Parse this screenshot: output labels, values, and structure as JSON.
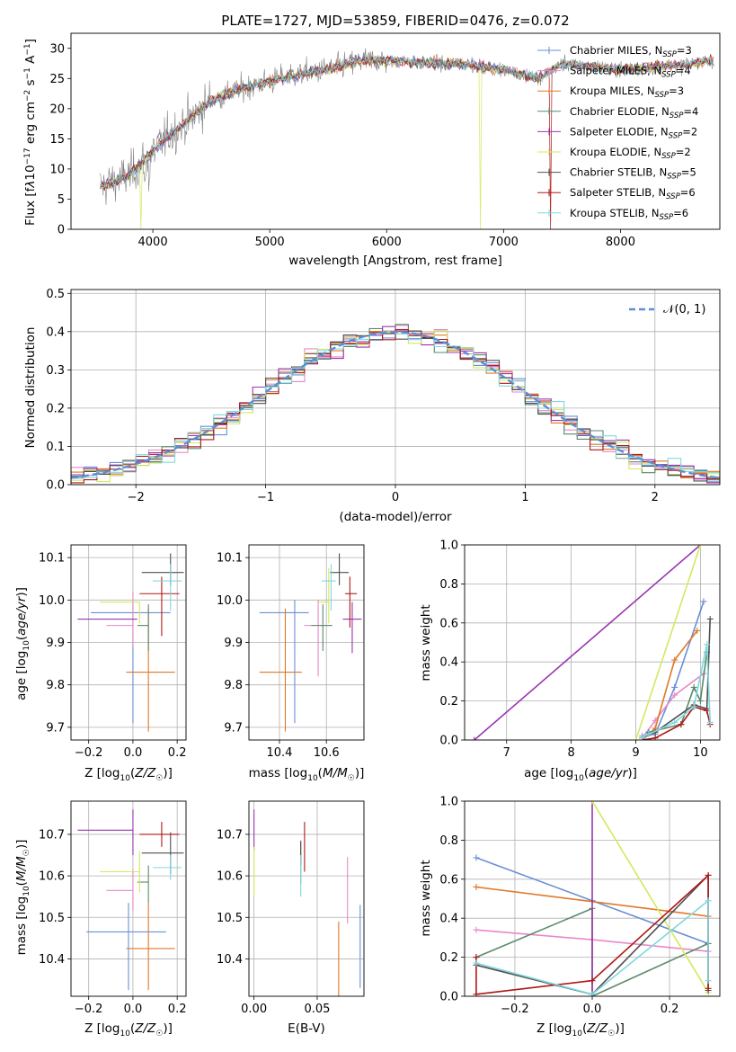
{
  "colors": [
    "#6a8fd6",
    "#e888c8",
    "#e07828",
    "#5a8a6a",
    "#9a36b0",
    "#d4e860",
    "#505050",
    "#b01818",
    "#80d8e0"
  ],
  "ssp_labels": [
    "Chabrier MILES, N",
    "Salpeter MILES, N",
    "Kroupa MILES, N",
    "Chabrier ELODIE, N",
    "Salpeter ELODIE, N",
    "Kroupa ELODIE, N",
    "Chabrier STELIB, N",
    "Salpeter STELIB, N",
    "Kroupa STELIB, N"
  ],
  "ssp_sub": "SSP",
  "chart_data": [
    {
      "id": "spectrum",
      "type": "line",
      "title": "PLATE=1727, MJD=53859, FIBERID=0476, z=0.072",
      "xlabel": "wavelength [Angstrom, rest frame]",
      "ylabel": "Flux [fλ10⁻¹⁷ erg cm⁻² s⁻¹ A⁻¹]",
      "xlim": [
        3300,
        8850
      ],
      "ylim": [
        0,
        32.5
      ],
      "xticks": [
        4000,
        5000,
        6000,
        7000,
        8000
      ],
      "yticks": [
        0,
        5,
        10,
        15,
        20,
        25,
        30
      ],
      "continuum_x": [
        3550,
        3800,
        3950,
        4100,
        4300,
        4500,
        4800,
        5000,
        5200,
        5500,
        5800,
        6000,
        6300,
        6600,
        7000,
        7100,
        7300,
        7500,
        8000,
        8400,
        8800
      ],
      "continuum_y": [
        7,
        9,
        12,
        15,
        18,
        21.5,
        23.5,
        24.5,
        25.5,
        26.5,
        28,
        28,
        27.5,
        27.5,
        26.5,
        26,
        25,
        27.5,
        26.5,
        27,
        28
      ],
      "legend": [
        "=3",
        "=4",
        "=3",
        "=4",
        "=2",
        "=2",
        "=5",
        "=6",
        "=6"
      ]
    },
    {
      "id": "histogram",
      "type": "bar",
      "xlabel": "(data-model)/error",
      "ylabel": "Normed distribution",
      "xlim": [
        -2.5,
        2.5
      ],
      "ylim": [
        0,
        0.51
      ],
      "xticks": [
        -2,
        -1,
        0,
        1,
        2
      ],
      "xtick_labels": [
        "−2",
        "−1",
        "0",
        "1",
        "2"
      ],
      "yticks": [
        0.0,
        0.1,
        0.2,
        0.3,
        0.4,
        0.5
      ],
      "ytick_labels": [
        "0.0",
        "0.1",
        "0.2",
        "0.3",
        "0.4",
        "0.5"
      ],
      "bin_width": 0.1,
      "gaussian_label": "𝒩(0, 1)"
    },
    {
      "id": "age_vs_Z",
      "type": "scatter",
      "xlabel": "Z [log₁₀(Z/Z☉)]",
      "ylabel": "age  [log₁₀(age/yr)]",
      "xlim": [
        -0.28,
        0.24
      ],
      "ylim": [
        9.67,
        10.13
      ],
      "xticks": [
        -0.2,
        0.0,
        0.2
      ],
      "xtick_labels": [
        "−0.2",
        "0.0",
        "0.2"
      ],
      "yticks": [
        9.7,
        9.8,
        9.9,
        10.0,
        10.1
      ],
      "ytick_labels": [
        "9.7",
        "9.8",
        "9.9",
        "10.0",
        "10.1"
      ],
      "points": [
        {
          "x": 0.0,
          "y": 9.97,
          "xerr": [
            0.19,
            0.17
          ],
          "yerr": [
            0.26,
            0.03
          ]
        },
        {
          "x": 0.0,
          "y": 9.94,
          "xerr": [
            0.12,
            0.0
          ],
          "yerr": [
            0.05,
            0.08
          ]
        },
        {
          "x": 0.07,
          "y": 9.83,
          "xerr": [
            0.1,
            0.12
          ],
          "yerr": [
            0.14,
            0.15
          ]
        },
        {
          "x": 0.07,
          "y": 9.94,
          "xerr": [
            0.05,
            0.0
          ],
          "yerr": [
            0.06,
            0.05
          ]
        },
        {
          "x": -0.02,
          "y": 9.955,
          "xerr": [
            0.23,
            0.04
          ],
          "yerr": [
            0.0,
            0.0
          ]
        },
        {
          "x": 0.03,
          "y": 9.995,
          "xerr": [
            0.18,
            0.0
          ],
          "yerr": [
            0.05,
            0.0
          ]
        },
        {
          "x": 0.17,
          "y": 10.065,
          "xerr": [
            0.13,
            0.06
          ],
          "yerr": [
            0.03,
            0.045
          ]
        },
        {
          "x": 0.13,
          "y": 10.015,
          "xerr": [
            0.1,
            0.08
          ],
          "yerr": [
            0.1,
            0.04
          ]
        },
        {
          "x": 0.17,
          "y": 10.045,
          "xerr": [
            0.08,
            0.05
          ],
          "yerr": [
            0.07,
            0.04
          ]
        }
      ]
    },
    {
      "id": "age_vs_mass",
      "type": "scatter",
      "xlabel": "mass [log₁₀(M/M☉)]",
      "xlim": [
        10.27,
        10.76
      ],
      "ylim": [
        9.67,
        10.13
      ],
      "xticks": [
        10.4,
        10.6
      ],
      "xtick_labels": [
        "10.4",
        "10.6"
      ],
      "yticks": [
        9.7,
        9.8,
        9.9,
        10.0,
        10.1
      ],
      "ytick_labels": [
        "9.7",
        "9.8",
        "9.9",
        "10.0",
        "10.1"
      ],
      "points": [
        {
          "x": 10.465,
          "y": 9.97,
          "xerr": [
            0.15,
            0.06
          ],
          "yerr": [
            0.26,
            0.03
          ]
        },
        {
          "x": 10.565,
          "y": 9.94,
          "xerr": [
            0.06,
            0.06
          ],
          "yerr": [
            0.12,
            0.06
          ]
        },
        {
          "x": 10.425,
          "y": 9.83,
          "xerr": [
            0.11,
            0.07
          ],
          "yerr": [
            0.14,
            0.15
          ]
        },
        {
          "x": 10.585,
          "y": 9.94,
          "xerr": [
            0.05,
            0.04
          ],
          "yerr": [
            0.06,
            0.05
          ]
        },
        {
          "x": 10.71,
          "y": 9.955,
          "xerr": [
            0.04,
            0.04
          ],
          "yerr": [
            0.08,
            0.04
          ]
        },
        {
          "x": 10.61,
          "y": 9.995,
          "xerr": [
            0.05,
            0.0
          ],
          "yerr": [
            0.05,
            0.08
          ]
        },
        {
          "x": 10.655,
          "y": 10.065,
          "xerr": [
            0.04,
            0.04
          ],
          "yerr": [
            0.03,
            0.045
          ]
        },
        {
          "x": 10.7,
          "y": 10.015,
          "xerr": [
            0.02,
            0.03
          ],
          "yerr": [
            0.08,
            0.04
          ]
        },
        {
          "x": 10.62,
          "y": 10.045,
          "xerr": [
            0.04,
            0.02
          ],
          "yerr": [
            0.07,
            0.04
          ]
        }
      ]
    },
    {
      "id": "weight_vs_age",
      "type": "line",
      "xlabel": "age  [log₁₀(age/yr)]",
      "ylabel": "mass weight",
      "xlim": [
        6.35,
        10.3
      ],
      "ylim": [
        0,
        1
      ],
      "xticks": [
        7,
        8,
        9,
        10
      ],
      "yticks": [
        0.0,
        0.2,
        0.4,
        0.6,
        0.8,
        1.0
      ],
      "ytick_labels": [
        "0.0",
        "0.2",
        "0.4",
        "0.6",
        "0.8",
        "1.0"
      ],
      "series": [
        {
          "x": [
            9.1,
            9.3,
            9.6,
            10.05
          ],
          "y": [
            0.02,
            0.03,
            0.27,
            0.71
          ]
        },
        {
          "x": [
            9.1,
            9.3,
            9.6,
            10.05
          ],
          "y": [
            0.01,
            0.1,
            0.23,
            0.34
          ]
        },
        {
          "x": [
            9.1,
            9.3,
            9.6,
            9.95
          ],
          "y": [
            0.0,
            0.06,
            0.41,
            0.56
          ]
        },
        {
          "x": [
            9.1,
            9.2,
            9.7,
            9.9,
            10.0,
            10.1
          ],
          "y": [
            0.0,
            0.04,
            0.08,
            0.27,
            0.2,
            0.45
          ]
        },
        {
          "x": [
            6.5,
            10.0
          ],
          "y": [
            0.0,
            1.0
          ]
        },
        {
          "x": [
            9.0,
            10.0
          ],
          "y": [
            0.0,
            1.0
          ]
        },
        {
          "x": [
            9.1,
            9.3,
            9.9,
            10.1,
            10.15
          ],
          "y": [
            0.01,
            0.04,
            0.18,
            0.16,
            0.62
          ]
        },
        {
          "x": [
            9.1,
            9.3,
            9.7,
            9.9,
            10.1,
            10.15
          ],
          "y": [
            0.0,
            0.01,
            0.08,
            0.17,
            0.15,
            0.08
          ]
        },
        {
          "x": [
            9.1,
            9.2,
            9.6,
            9.9,
            10.1,
            10.15
          ],
          "y": [
            0.01,
            0.03,
            0.09,
            0.17,
            0.49,
            0.09
          ]
        }
      ]
    },
    {
      "id": "mass_vs_Z",
      "type": "scatter",
      "xlabel": "Z [log₁₀(Z/Z☉)]",
      "ylabel": "mass [log₁₀(M/M☉)]",
      "xlim": [
        -0.28,
        0.24
      ],
      "ylim": [
        10.31,
        10.78
      ],
      "xticks": [
        -0.2,
        0.0,
        0.2
      ],
      "xtick_labels": [
        "−0.2",
        "0.0",
        "0.2"
      ],
      "yticks": [
        10.4,
        10.5,
        10.6,
        10.7
      ],
      "ytick_labels": [
        "10.4",
        "10.5",
        "10.6",
        "10.7"
      ],
      "points": [
        {
          "x": -0.02,
          "y": 10.465,
          "xerr": [
            0.19,
            0.17
          ],
          "yerr": [
            0.14,
            0.07
          ]
        },
        {
          "x": 0.0,
          "y": 10.565,
          "xerr": [
            0.12,
            0.0
          ],
          "yerr": [
            0.05,
            0.05
          ]
        },
        {
          "x": 0.07,
          "y": 10.425,
          "xerr": [
            0.1,
            0.12
          ],
          "yerr": [
            0.1,
            0.11
          ]
        },
        {
          "x": 0.07,
          "y": 10.585,
          "xerr": [
            0.05,
            0.0
          ],
          "yerr": [
            0.05,
            0.04
          ]
        },
        {
          "x": 0.0,
          "y": 10.71,
          "xerr": [
            0.25,
            0.0
          ],
          "yerr": [
            0.06,
            0.05
          ]
        },
        {
          "x": 0.03,
          "y": 10.61,
          "xerr": [
            0.18,
            0.0
          ],
          "yerr": [
            0.05,
            0.05
          ]
        },
        {
          "x": 0.17,
          "y": 10.655,
          "xerr": [
            0.13,
            0.06
          ],
          "yerr": [
            0.05,
            0.05
          ]
        },
        {
          "x": 0.13,
          "y": 10.7,
          "xerr": [
            0.1,
            0.08
          ],
          "yerr": [
            0.03,
            0.03
          ]
        },
        {
          "x": 0.17,
          "y": 10.62,
          "xerr": [
            0.08,
            0.05
          ],
          "yerr": [
            0.03,
            0.03
          ]
        }
      ]
    },
    {
      "id": "mass_vs_EBV",
      "type": "scatter",
      "xlabel": "E(B-V)",
      "xlim": [
        -0.004,
        0.087
      ],
      "ylim": [
        10.31,
        10.78
      ],
      "xticks": [
        0.0,
        0.05
      ],
      "xtick_labels": [
        "0.00",
        "0.05"
      ],
      "yticks": [
        10.4,
        10.5,
        10.6,
        10.7
      ],
      "ytick_labels": [
        "10.4",
        "10.5",
        "10.6",
        "10.7"
      ],
      "points": [
        {
          "x": 0.084,
          "y": 10.43,
          "xerr": [
            0,
            0
          ],
          "yerr": [
            0.1,
            0.1
          ]
        },
        {
          "x": 0.074,
          "y": 10.565,
          "xerr": [
            0,
            0
          ],
          "yerr": [
            0.08,
            0.08
          ]
        },
        {
          "x": 0.067,
          "y": 10.4,
          "xerr": [
            0,
            0
          ],
          "yerr": [
            0.09,
            0.09
          ]
        },
        {
          "x": 0.037,
          "y": 10.63,
          "xerr": [
            0,
            0
          ],
          "yerr": [
            0.05,
            0.05
          ]
        },
        {
          "x": 0.0,
          "y": 10.71,
          "xerr": [
            0,
            0
          ],
          "yerr": [
            0.05,
            0.05
          ]
        },
        {
          "x": 0.0,
          "y": 10.61,
          "xerr": [
            0,
            0
          ],
          "yerr": [
            0.06,
            0.06
          ]
        },
        {
          "x": 0.037,
          "y": 10.655,
          "xerr": [
            0,
            0
          ],
          "yerr": [
            0.03,
            0.03
          ]
        },
        {
          "x": 0.04,
          "y": 10.67,
          "xerr": [
            0,
            0
          ],
          "yerr": [
            0.06,
            0.06
          ]
        },
        {
          "x": 0.037,
          "y": 10.6,
          "xerr": [
            0,
            0
          ],
          "yerr": [
            0.05,
            0.05
          ]
        }
      ]
    },
    {
      "id": "weight_vs_Z",
      "type": "line",
      "xlabel": "Z [log₁₀(Z/Z☉)]",
      "ylabel": "mass weight",
      "xlim": [
        -0.33,
        0.33
      ],
      "ylim": [
        0,
        1
      ],
      "xticks": [
        -0.2,
        0.0,
        0.2
      ],
      "xtick_labels": [
        "−0.2",
        "0.0",
        "0.2"
      ],
      "yticks": [
        0.0,
        0.2,
        0.4,
        0.6,
        0.8,
        1.0
      ],
      "ytick_labels": [
        "0.0",
        "0.2",
        "0.4",
        "0.6",
        "0.8",
        "1.0"
      ],
      "series": [
        {
          "x": [
            -0.3,
            0.0,
            0.3
          ],
          "y": [
            0.71,
            0.49,
            0.27
          ]
        },
        {
          "x": [
            -0.3,
            0.0,
            0.3
          ],
          "y": [
            0.34,
            0.29,
            0.23
          ]
        },
        {
          "x": [
            -0.3,
            0.3
          ],
          "y": [
            0.56,
            0.41
          ]
        },
        {
          "x": [
            -0.3,
            0.0,
            0.0,
            0.3
          ],
          "y": [
            0.2,
            0.45,
            0.0,
            0.27
          ]
        },
        {
          "x": [
            0.0,
            0.0
          ],
          "y": [
            0.0,
            1.0
          ]
        },
        {
          "x": [
            0.0,
            0.3
          ],
          "y": [
            1.0,
            0.02
          ]
        },
        {
          "x": [
            -0.3,
            0.0,
            0.3,
            0.3
          ],
          "y": [
            0.16,
            0.01,
            0.62,
            0.03
          ]
        },
        {
          "x": [
            -0.3,
            -0.3,
            0.0,
            0.3,
            0.3
          ],
          "y": [
            0.2,
            0.01,
            0.08,
            0.62,
            0.04
          ]
        },
        {
          "x": [
            -0.3,
            0.0,
            0.3,
            0.3
          ],
          "y": [
            0.17,
            0.01,
            0.49,
            0.08
          ]
        }
      ]
    }
  ]
}
